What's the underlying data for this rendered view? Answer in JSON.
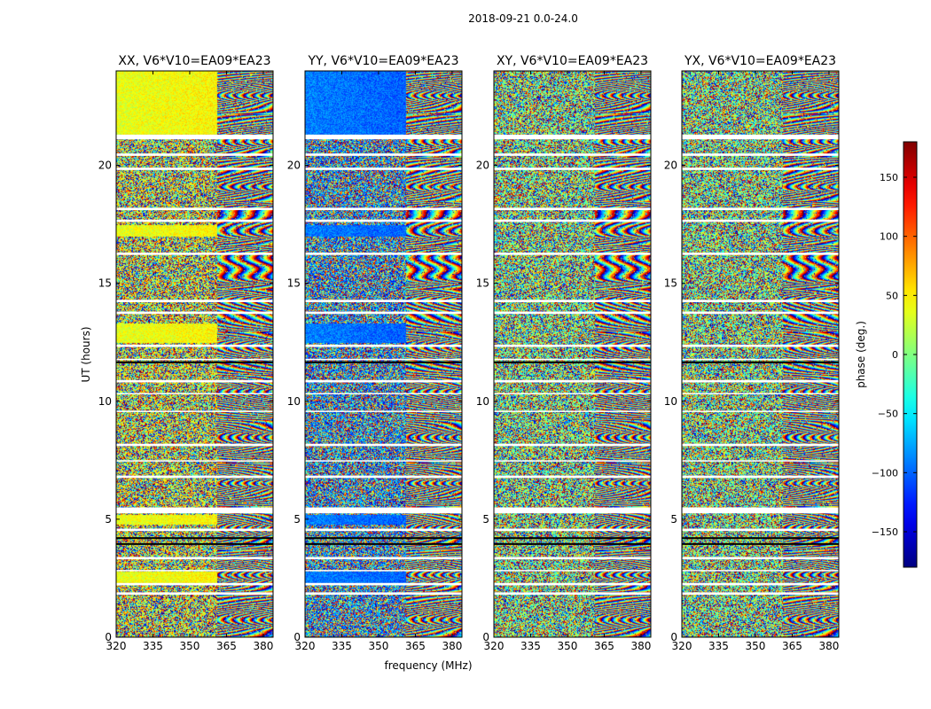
{
  "figure": {
    "suptitle": "2018-09-21 0.0-24.0"
  },
  "chart_data": {
    "type": "heatmap",
    "title": "2018-09-21 0.0-24.0",
    "xlabel": "frequency (MHz)",
    "ylabel": "UT (hours)",
    "xlim": [
      320,
      384
    ],
    "ylim": [
      0,
      24
    ],
    "x_ticks": [
      "320",
      "335",
      "350",
      "365",
      "380"
    ],
    "y_ticks": [
      "0",
      "5",
      "10",
      "15",
      "20"
    ],
    "panels": [
      {
        "title": "XX, V6*V10=EA09*EA23",
        "pol": "XX"
      },
      {
        "title": "YY, V6*V10=EA09*EA23",
        "pol": "YY"
      },
      {
        "title": "XY, V6*V10=EA09*EA23",
        "pol": "XY"
      },
      {
        "title": "YX, V6*V10=EA09*EA23",
        "pol": "YX"
      }
    ],
    "colorbar": {
      "label": "phase (deg.)",
      "range": [
        -180,
        180
      ],
      "ticks": [
        "−150",
        "−100",
        "−50",
        "0",
        "50",
        "100",
        "150"
      ],
      "tick_values": [
        -150,
        -100,
        -50,
        0,
        50,
        100,
        150
      ],
      "colormap": "jet"
    },
    "gaps_ut_hours": [
      [
        21.1,
        21.3
      ],
      [
        20.4,
        20.5
      ],
      [
        19.8,
        19.9
      ],
      [
        18.1,
        18.2
      ],
      [
        17.6,
        17.7
      ],
      [
        16.2,
        16.3
      ],
      [
        14.2,
        14.3
      ],
      [
        13.7,
        13.8
      ],
      [
        12.3,
        12.4
      ],
      [
        11.75,
        11.8
      ],
      [
        10.8,
        10.9
      ],
      [
        10.3,
        10.35
      ],
      [
        9.55,
        9.6
      ],
      [
        8.1,
        8.2
      ],
      [
        7.45,
        7.5
      ],
      [
        6.75,
        6.85
      ],
      [
        5.25,
        5.5
      ],
      [
        4.5,
        4.6
      ],
      [
        3.3,
        3.4
      ],
      [
        2.8,
        2.85
      ],
      [
        2.2,
        2.3
      ],
      [
        1.8,
        1.9
      ]
    ],
    "flagged_rows_ut_hours": [
      4.2,
      3.95,
      11.65
    ]
  }
}
